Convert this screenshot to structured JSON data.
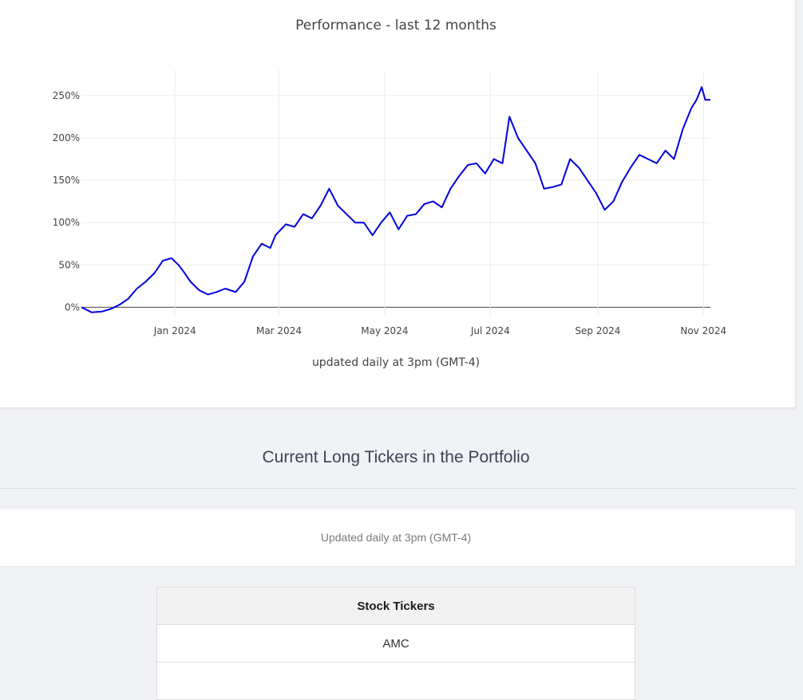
{
  "chart_data": {
    "type": "line",
    "title": "Performance - last 12 months",
    "xlabel": "updated daily at 3pm (GMT-4)",
    "ylabel": "",
    "y_ticks": [
      "0%",
      "50%",
      "100%",
      "150%",
      "200%",
      "250%"
    ],
    "y_tick_values": [
      0,
      50,
      100,
      150,
      200,
      250
    ],
    "x_ticks": [
      "Jan 2024",
      "Mar 2024",
      "May 2024",
      "Jul 2024",
      "Sep 2024",
      "Nov 2024"
    ],
    "x_tick_values": [
      "2024-01-01",
      "2024-03-01",
      "2024-05-01",
      "2024-07-01",
      "2024-09-01",
      "2024-11-01"
    ],
    "xlim": [
      "2023-11-08",
      "2024-11-05"
    ],
    "ylim": [
      -10,
      280
    ],
    "line_color": "#0000dd",
    "x": [
      "2023-11-08",
      "2023-11-14",
      "2023-11-20",
      "2023-11-25",
      "2023-11-30",
      "2023-12-05",
      "2023-12-10",
      "2023-12-15",
      "2023-12-20",
      "2023-12-25",
      "2023-12-30",
      "2024-01-03",
      "2024-01-06",
      "2024-01-10",
      "2024-01-15",
      "2024-01-20",
      "2024-01-25",
      "2024-01-30",
      "2024-02-05",
      "2024-02-10",
      "2024-02-15",
      "2024-02-20",
      "2024-02-25",
      "2024-02-28",
      "2024-03-05",
      "2024-03-10",
      "2024-03-15",
      "2024-03-20",
      "2024-03-25",
      "2024-03-30",
      "2024-04-04",
      "2024-04-09",
      "2024-04-14",
      "2024-04-19",
      "2024-04-24",
      "2024-04-29",
      "2024-05-04",
      "2024-05-09",
      "2024-05-14",
      "2024-05-19",
      "2024-05-24",
      "2024-05-29",
      "2024-06-03",
      "2024-06-08",
      "2024-06-13",
      "2024-06-18",
      "2024-06-23",
      "2024-06-28",
      "2024-07-03",
      "2024-07-08",
      "2024-07-12",
      "2024-07-17",
      "2024-07-22",
      "2024-07-27",
      "2024-08-01",
      "2024-08-06",
      "2024-08-11",
      "2024-08-16",
      "2024-08-21",
      "2024-08-26",
      "2024-08-31",
      "2024-09-05",
      "2024-09-10",
      "2024-09-15",
      "2024-09-20",
      "2024-09-25",
      "2024-09-30",
      "2024-10-05",
      "2024-10-10",
      "2024-10-15",
      "2024-10-20",
      "2024-10-25",
      "2024-10-28",
      "2024-10-31",
      "2024-11-02",
      "2024-11-05"
    ],
    "values": [
      0,
      -6,
      -5,
      -2,
      3,
      10,
      22,
      30,
      40,
      55,
      58,
      50,
      42,
      30,
      20,
      15,
      18,
      22,
      18,
      30,
      60,
      75,
      70,
      85,
      98,
      95,
      110,
      105,
      120,
      140,
      120,
      110,
      100,
      100,
      85,
      100,
      112,
      92,
      108,
      110,
      122,
      125,
      118,
      140,
      155,
      168,
      170,
      158,
      175,
      170,
      225,
      200,
      185,
      170,
      140,
      142,
      145,
      175,
      165,
      150,
      135,
      115,
      125,
      148,
      165,
      180,
      175,
      170,
      185,
      175,
      210,
      235,
      245,
      260,
      245,
      245
    ]
  },
  "section": {
    "title": "Current Long Tickers in the Portfolio",
    "update_note": "Updated daily at 3pm (GMT-4)"
  },
  "table": {
    "header": "Stock Tickers",
    "rows": [
      "AMC",
      ""
    ]
  }
}
